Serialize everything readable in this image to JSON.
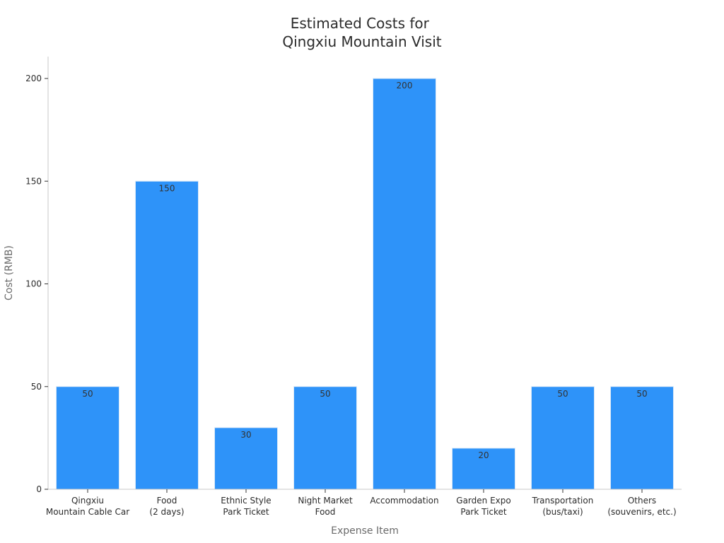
{
  "chart_data": {
    "type": "bar",
    "title": [
      "Estimated Costs for",
      "Qingxiu Mountain Visit"
    ],
    "xlabel": "Expense Item",
    "ylabel": "Cost (RMB)",
    "categories": [
      [
        "Qingxiu",
        "Mountain Cable Car"
      ],
      [
        "Food",
        "(2 days)"
      ],
      [
        "Ethnic Style",
        "Park Ticket"
      ],
      [
        "Night Market",
        "Food"
      ],
      [
        "Accommodation"
      ],
      [
        "Garden Expo",
        "Park Ticket"
      ],
      [
        "Transportation",
        "(bus/taxi)"
      ],
      [
        "Others",
        "(souvenirs, etc.)"
      ]
    ],
    "values": [
      50,
      150,
      30,
      50,
      200,
      20,
      50,
      50
    ],
    "data_labels": [
      "50",
      "150",
      "30",
      "50",
      "200",
      "20",
      "50",
      "50"
    ],
    "ylim": [
      0,
      200
    ],
    "yticks": [
      0,
      50,
      100,
      150,
      200
    ],
    "grid": false,
    "legend": "none",
    "colors": {
      "bar": "#2e93f9",
      "bar_edge": "#dbe9f7"
    }
  }
}
